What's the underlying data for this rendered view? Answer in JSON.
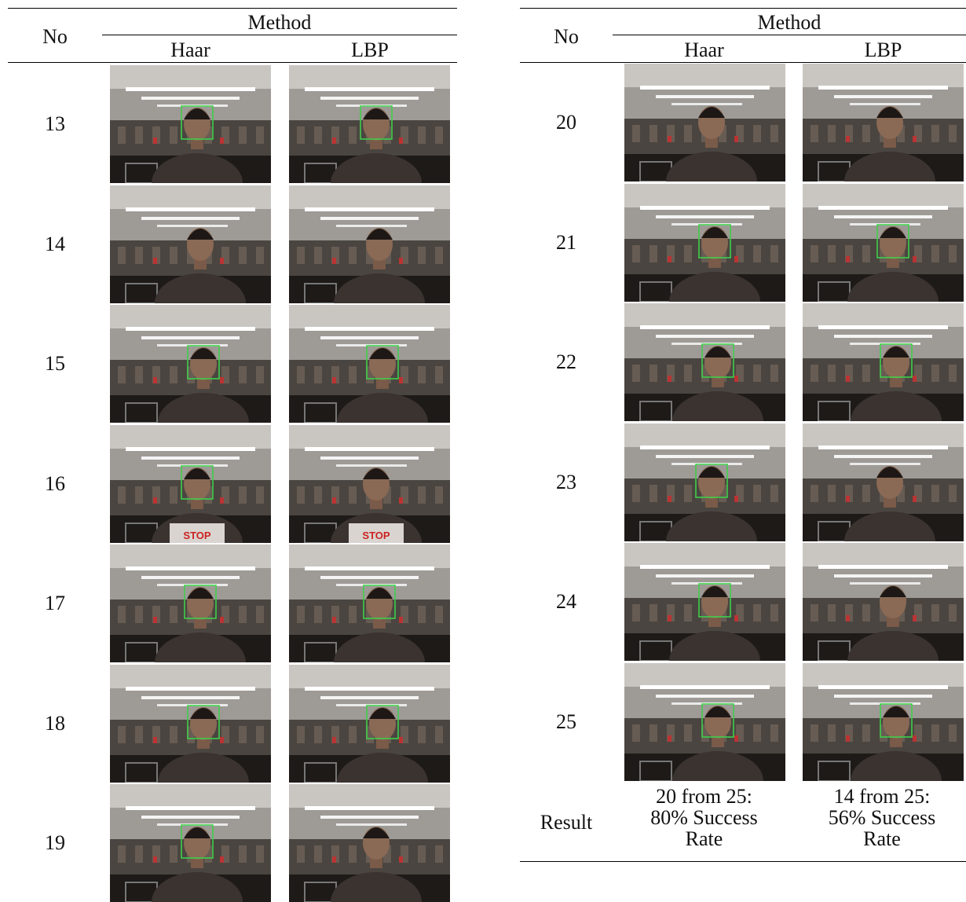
{
  "left": {
    "header": {
      "no": "No",
      "method": "Method",
      "haar": "Haar",
      "lbp": "LBP"
    },
    "rows": [
      {
        "no": "13",
        "haar_detected": true,
        "lbp_detected": true
      },
      {
        "no": "14",
        "haar_detected": false,
        "lbp_detected": false
      },
      {
        "no": "15",
        "haar_detected": true,
        "lbp_detected": true
      },
      {
        "no": "16",
        "haar_detected": true,
        "lbp_detected": false,
        "shirt_text": "STOP"
      },
      {
        "no": "17",
        "haar_detected": true,
        "lbp_detected": true
      },
      {
        "no": "18",
        "haar_detected": true,
        "lbp_detected": true
      },
      {
        "no": "19",
        "haar_detected": true,
        "lbp_detected": false
      }
    ]
  },
  "right": {
    "header": {
      "no": "No",
      "method": "Method",
      "haar": "Haar",
      "lbp": "LBP"
    },
    "rows": [
      {
        "no": "20",
        "haar_detected": false,
        "lbp_detected": false
      },
      {
        "no": "21",
        "haar_detected": true,
        "lbp_detected": true
      },
      {
        "no": "22",
        "haar_detected": true,
        "lbp_detected": true
      },
      {
        "no": "23",
        "haar_detected": true,
        "lbp_detected": false
      },
      {
        "no": "24",
        "haar_detected": true,
        "lbp_detected": false
      },
      {
        "no": "25",
        "haar_detected": true,
        "lbp_detected": true
      }
    ],
    "result": {
      "label": "Result",
      "haar": [
        "20 from 25:",
        "80% Success",
        "Rate"
      ],
      "lbp": [
        "14 from 25:",
        "56% Success",
        "Rate"
      ]
    }
  },
  "colors": {
    "detection_box": "#3fcf4a",
    "rule": "#000000"
  }
}
